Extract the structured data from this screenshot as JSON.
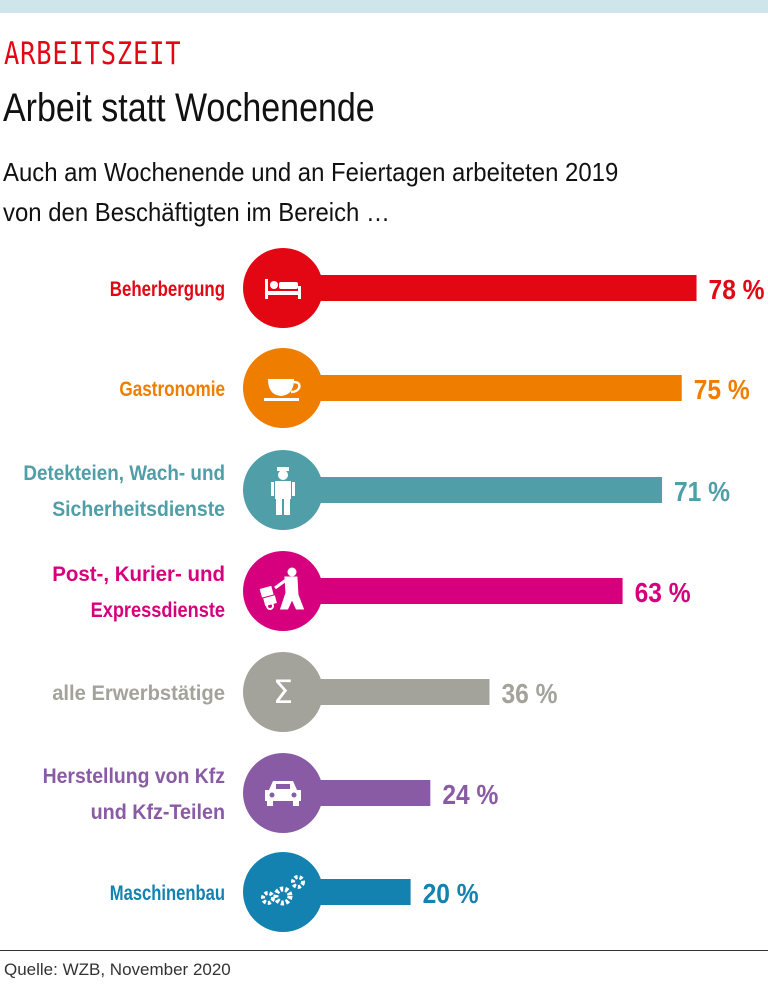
{
  "header": {
    "kicker": "ARBEITSZEIT",
    "title": "Arbeit statt Wochenende",
    "subtitle_line1": "Auch am Wochenende und an Feiertagen arbeiteten 2019",
    "subtitle_line2": "von den Beschäftigten im Bereich …"
  },
  "footer": {
    "source": "Quelle: WZB, November 2020"
  },
  "chart_data": {
    "type": "bar",
    "orientation": "horizontal",
    "unit": "%",
    "categories": [
      [
        "Beherbergung"
      ],
      [
        "Gastronomie"
      ],
      [
        "Detekteien, Wach- und",
        "Sicherheitsdienste"
      ],
      [
        "Post-, Kurier- und",
        "Expressdienste"
      ],
      [
        "alle Erwerbstätige"
      ],
      [
        "Herstellung von Kfz",
        "und Kfz-Teilen"
      ],
      [
        "Maschinenbau"
      ]
    ],
    "values": [
      78,
      75,
      71,
      63,
      36,
      24,
      20
    ],
    "value_labels": [
      "78 %",
      "75 %",
      "71 %",
      "63 %",
      "36 %",
      "24 %",
      "20 %"
    ],
    "colors": [
      "#e30613",
      "#ef7d00",
      "#4f9ea8",
      "#d6007e",
      "#a3a39b",
      "#8a5ba5",
      "#1382b0"
    ],
    "icons": [
      "bed-icon",
      "coffee-cup-icon",
      "security-guard-icon",
      "hand-truck-courier-icon",
      "sigma-icon",
      "car-icon",
      "gears-icon"
    ],
    "xlim": [
      0,
      100
    ],
    "grid": false
  }
}
